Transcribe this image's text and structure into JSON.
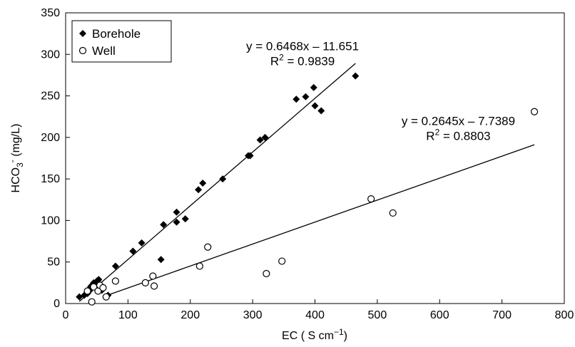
{
  "chart_data": {
    "type": "scatter",
    "xlabel": {
      "text": "EC (   S cm",
      "sup": "−1",
      "suffix": ")"
    },
    "ylabel": {
      "text": "HCO",
      "sub": "3",
      "sup": "-",
      "suffix": " (mg/L)"
    },
    "xlim": [
      0,
      800
    ],
    "ylim": [
      0,
      350
    ],
    "xticks": [
      0,
      100,
      200,
      300,
      400,
      500,
      600,
      700,
      800
    ],
    "yticks": [
      0,
      50,
      100,
      150,
      200,
      250,
      300,
      350
    ],
    "grid": false,
    "legend_position": "top-left",
    "series": [
      {
        "name": "Borehole",
        "marker": "diamond-filled",
        "color": "#000000",
        "points": [
          [
            22,
            8
          ],
          [
            30,
            10
          ],
          [
            35,
            12
          ],
          [
            38,
            15
          ],
          [
            40,
            20
          ],
          [
            42,
            22
          ],
          [
            45,
            25
          ],
          [
            47,
            22
          ],
          [
            50,
            27
          ],
          [
            52,
            28
          ],
          [
            53,
            29
          ],
          [
            55,
            20
          ],
          [
            58,
            16
          ],
          [
            68,
            10
          ],
          [
            80,
            45
          ],
          [
            108,
            63
          ],
          [
            122,
            73
          ],
          [
            153,
            53
          ],
          [
            157,
            95
          ],
          [
            178,
            98
          ],
          [
            178,
            110
          ],
          [
            192,
            102
          ],
          [
            213,
            137
          ],
          [
            220,
            145
          ],
          [
            252,
            150
          ],
          [
            293,
            178
          ],
          [
            296,
            178
          ],
          [
            312,
            197
          ],
          [
            320,
            200
          ],
          [
            370,
            246
          ],
          [
            385,
            249
          ],
          [
            398,
            260
          ],
          [
            400,
            238
          ],
          [
            410,
            232
          ],
          [
            465,
            274
          ]
        ],
        "fit": {
          "slope": 0.6468,
          "intercept": -11.651,
          "x_range": [
            22,
            465
          ]
        }
      },
      {
        "name": "Well",
        "marker": "circle-open",
        "color": "#000000",
        "points": [
          [
            35,
            15
          ],
          [
            42,
            2
          ],
          [
            45,
            20
          ],
          [
            52,
            15
          ],
          [
            55,
            22
          ],
          [
            60,
            19
          ],
          [
            65,
            8
          ],
          [
            80,
            27
          ],
          [
            128,
            25
          ],
          [
            140,
            33
          ],
          [
            142,
            21
          ],
          [
            215,
            45
          ],
          [
            228,
            68
          ],
          [
            322,
            36
          ],
          [
            347,
            51
          ],
          [
            490,
            126
          ],
          [
            525,
            109
          ],
          [
            752,
            231
          ]
        ],
        "fit": {
          "slope": 0.2645,
          "intercept": -7.7389,
          "x_range": [
            60,
            752
          ]
        }
      }
    ],
    "annotations": [
      {
        "line1": "y = 0.6468x – 11.651",
        "r2_prefix": "R",
        "r2_sup": "2",
        "r2_value": " = 0.9839",
        "anchor": [
          380,
          305
        ]
      },
      {
        "line1": "y = 0.2645x – 7.7389",
        "r2_prefix": "R",
        "r2_sup": "2",
        "r2_value": " = 0.8803",
        "anchor": [
          630,
          215
        ]
      }
    ]
  }
}
